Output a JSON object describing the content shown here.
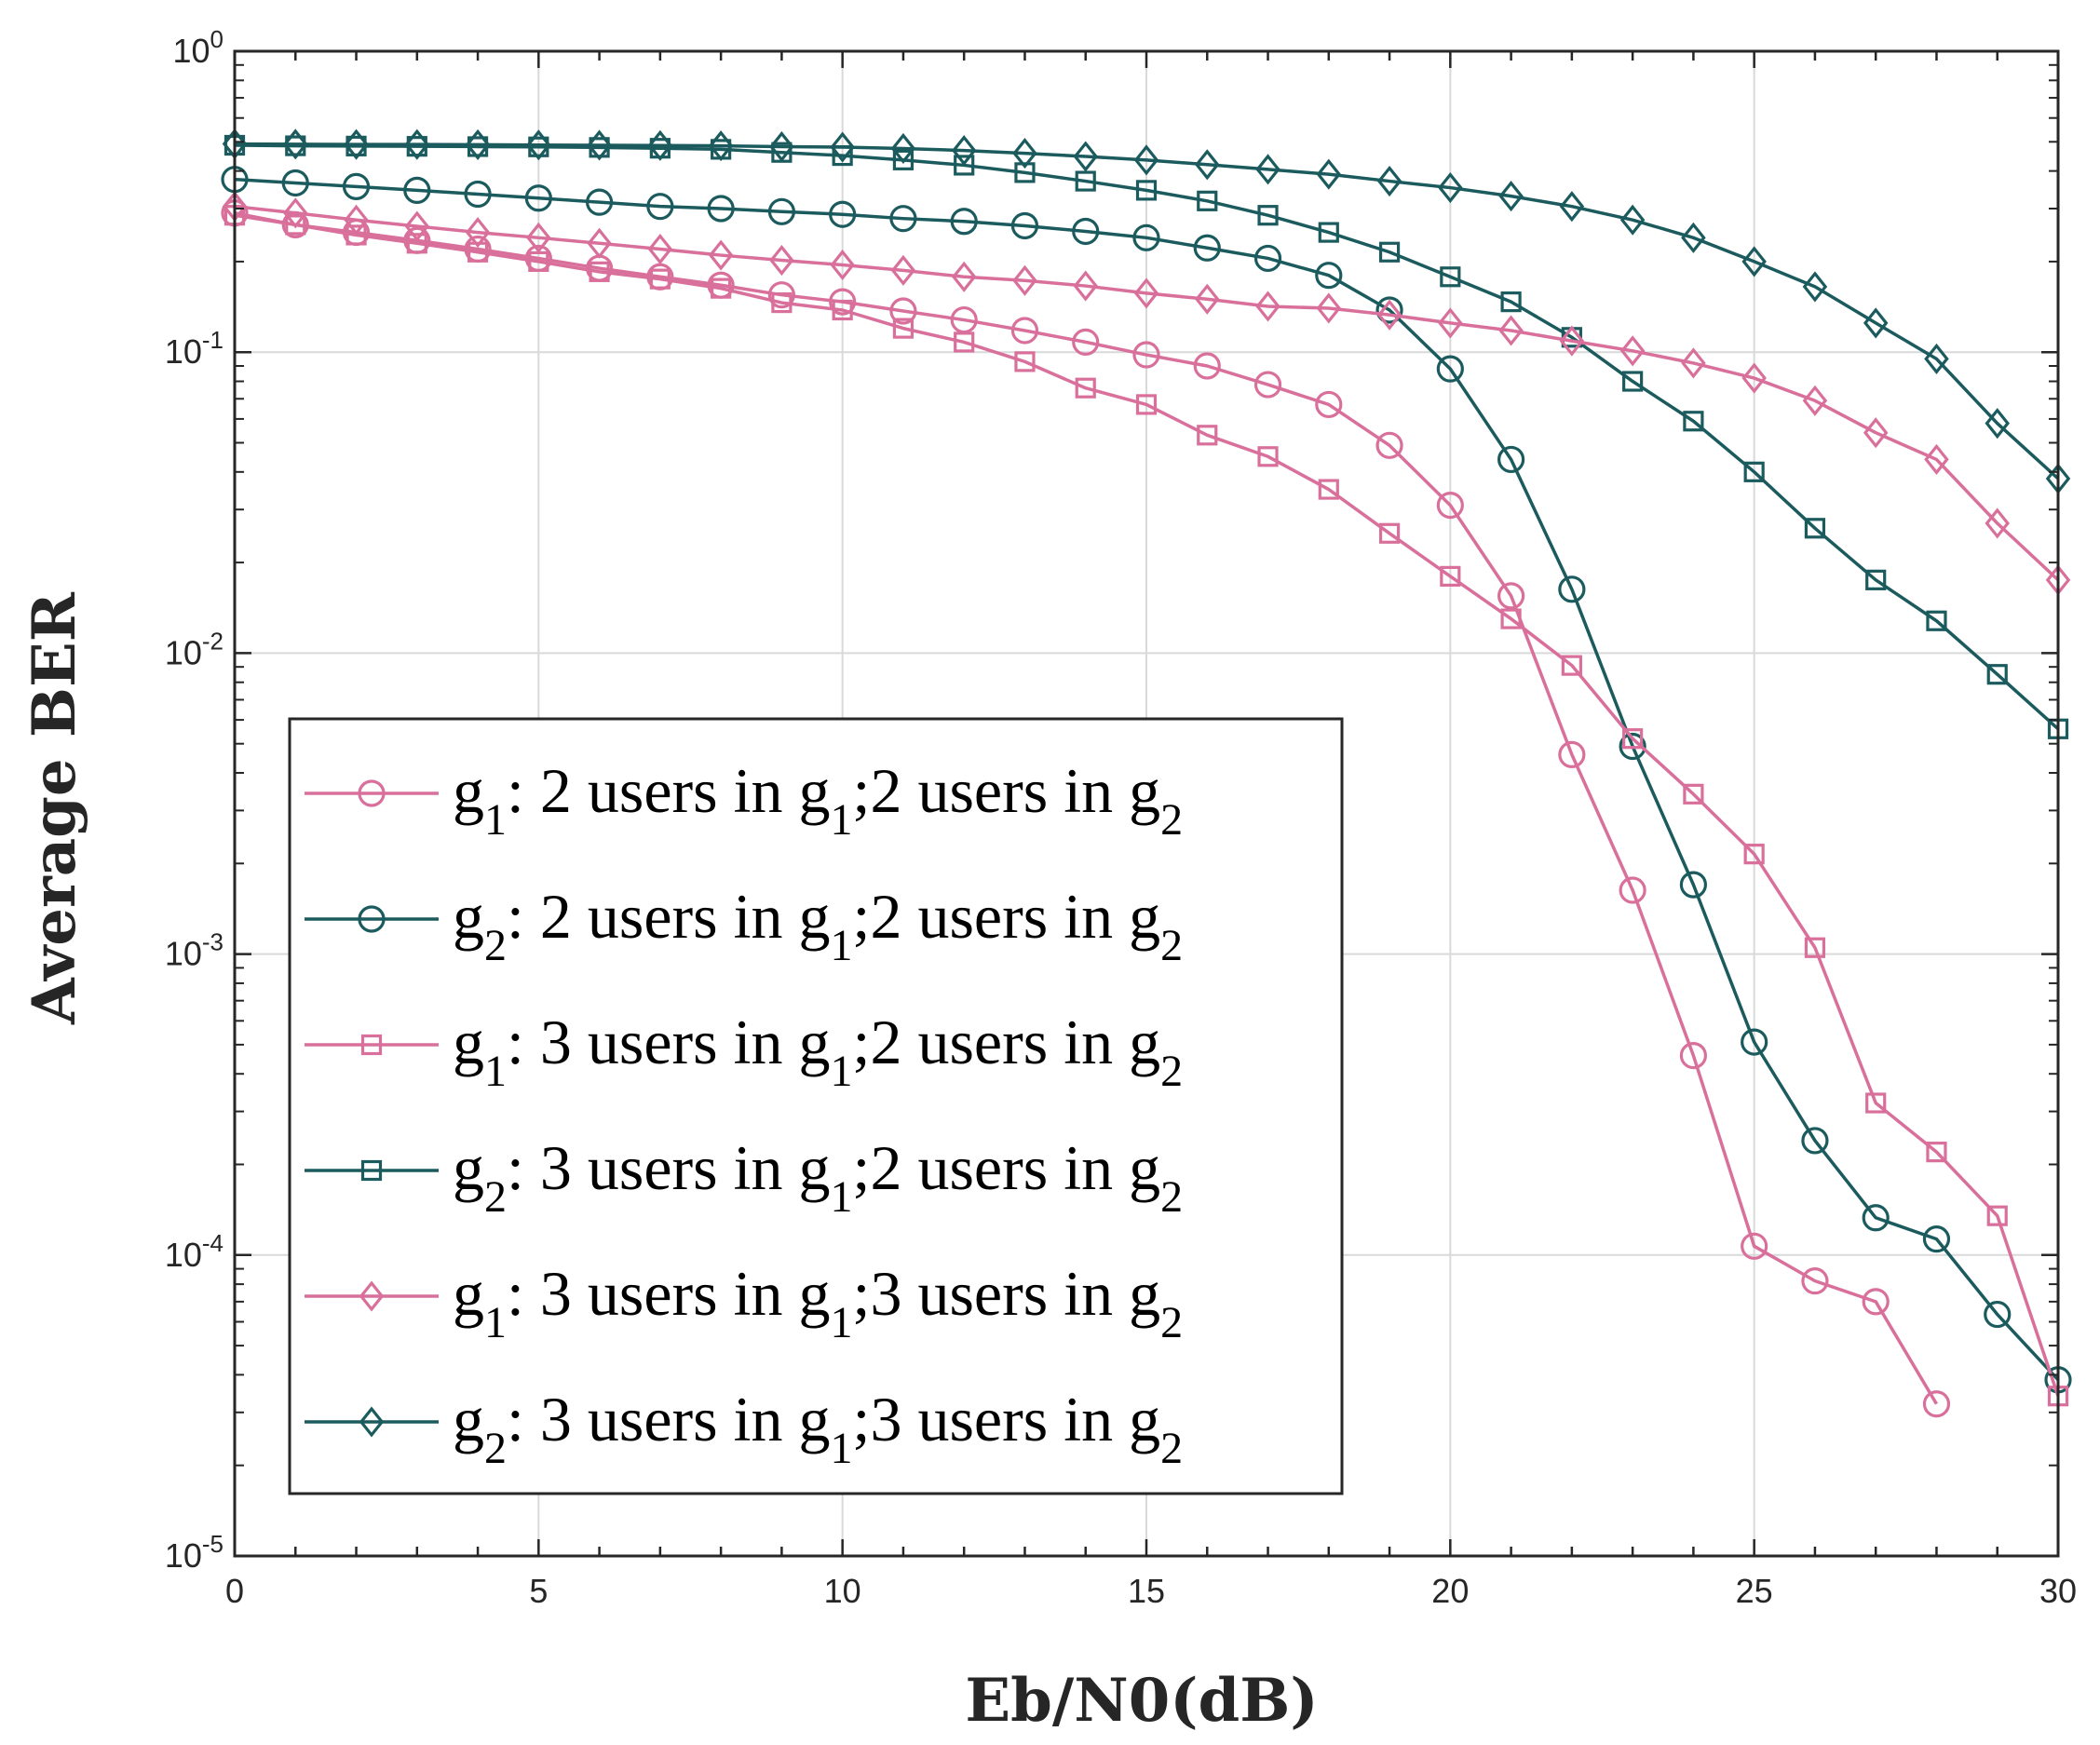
{
  "chart_data": {
    "type": "line",
    "xlabel": "Eb/N0(dB)",
    "ylabel": "Average BER",
    "xlim": [
      0,
      30
    ],
    "ylim": [
      1e-05,
      1
    ],
    "yscale": "log",
    "grid": true,
    "legend_position": "lower-left",
    "x_ticks": [
      "0",
      "5",
      "10",
      "15",
      "20",
      "25",
      "30"
    ],
    "y_ticks": [
      {
        "base": "10",
        "exp": "0"
      },
      {
        "base": "10",
        "exp": "-1"
      },
      {
        "base": "10",
        "exp": "-2"
      },
      {
        "base": "10",
        "exp": "-3"
      },
      {
        "base": "10",
        "exp": "-4"
      },
      {
        "base": "10",
        "exp": "-5"
      }
    ],
    "colors": {
      "pink": "#d9709b",
      "teal": "#1b5b5e"
    },
    "series": [
      {
        "name": "g1: 2 users in g1;2 users in g2",
        "legend_parts": [
          [
            "g",
            false
          ],
          [
            "1",
            true
          ],
          [
            ": 2 users in g",
            false
          ],
          [
            "1",
            true
          ],
          [
            ";2 users in g",
            false
          ],
          [
            "2",
            true
          ]
        ],
        "color": "#d9709b",
        "marker": "circle",
        "x": [
          0,
          1,
          2,
          3,
          4,
          5,
          6,
          7,
          8,
          9,
          10,
          11,
          12,
          13,
          14,
          15,
          16,
          17,
          18,
          19,
          20,
          21,
          22,
          23,
          24,
          25,
          26,
          27,
          28
        ],
        "y": [
          0.29,
          0.265,
          0.25,
          0.235,
          0.22,
          0.205,
          0.19,
          0.178,
          0.167,
          0.155,
          0.147,
          0.137,
          0.128,
          0.118,
          0.108,
          0.098,
          0.09,
          0.078,
          0.067,
          0.049,
          0.031,
          0.0155,
          0.0046,
          0.00163,
          0.00046,
          0.000107,
          8.2e-05,
          7e-05,
          3.2e-05
        ]
      },
      {
        "name": "g2: 2 users in g1;2 users in g2",
        "legend_parts": [
          [
            "g",
            false
          ],
          [
            "2",
            true
          ],
          [
            ": 2 users in g",
            false
          ],
          [
            "1",
            true
          ],
          [
            ";2 users in g",
            false
          ],
          [
            "2",
            true
          ]
        ],
        "color": "#1b5b5e",
        "marker": "circle",
        "x": [
          0,
          1,
          2,
          3,
          4,
          5,
          6,
          7,
          8,
          9,
          10,
          11,
          12,
          13,
          14,
          15,
          16,
          17,
          18,
          19,
          20,
          21,
          22,
          23,
          24,
          25,
          26,
          27,
          28,
          29,
          30
        ],
        "y": [
          0.375,
          0.365,
          0.355,
          0.345,
          0.335,
          0.325,
          0.315,
          0.305,
          0.3,
          0.293,
          0.287,
          0.278,
          0.272,
          0.263,
          0.252,
          0.24,
          0.222,
          0.205,
          0.18,
          0.138,
          0.088,
          0.044,
          0.0163,
          0.0049,
          0.0017,
          0.00051,
          0.00024,
          0.000133,
          0.000113,
          6.35e-05,
          3.85e-05
        ]
      },
      {
        "name": "g1: 3 users in g1;2 users in g2",
        "legend_parts": [
          [
            "g",
            false
          ],
          [
            "1",
            true
          ],
          [
            ": 3 users in g",
            false
          ],
          [
            "1",
            true
          ],
          [
            ";2 users in g",
            false
          ],
          [
            "2",
            true
          ]
        ],
        "color": "#d9709b",
        "marker": "square",
        "x": [
          0,
          1,
          2,
          3,
          4,
          5,
          6,
          7,
          8,
          9,
          10,
          11,
          12,
          13,
          14,
          15,
          16,
          17,
          18,
          19,
          20,
          21,
          22,
          23,
          24,
          25,
          26,
          27,
          28,
          29,
          30
        ],
        "y": [
          0.285,
          0.265,
          0.245,
          0.23,
          0.215,
          0.2,
          0.185,
          0.175,
          0.163,
          0.146,
          0.138,
          0.12,
          0.108,
          0.093,
          0.076,
          0.067,
          0.053,
          0.045,
          0.035,
          0.025,
          0.018,
          0.013,
          0.0091,
          0.0052,
          0.0034,
          0.00215,
          0.00105,
          0.00032,
          0.00022,
          0.000135,
          3.4e-05
        ]
      },
      {
        "name": "g2: 3 users in g1;2 users in g2",
        "legend_parts": [
          [
            "g",
            false
          ],
          [
            "2",
            true
          ],
          [
            ": 3 users in g",
            false
          ],
          [
            "1",
            true
          ],
          [
            ";2 users in g",
            false
          ],
          [
            "2",
            true
          ]
        ],
        "color": "#1b5b5e",
        "marker": "square",
        "x": [
          0,
          1,
          2,
          3,
          4,
          5,
          6,
          7,
          8,
          9,
          10,
          11,
          12,
          13,
          14,
          15,
          16,
          17,
          18,
          19,
          20,
          21,
          22,
          23,
          24,
          25,
          26,
          27,
          28,
          29,
          30
        ],
        "y": [
          0.487,
          0.485,
          0.484,
          0.483,
          0.482,
          0.481,
          0.479,
          0.476,
          0.472,
          0.461,
          0.45,
          0.435,
          0.418,
          0.395,
          0.37,
          0.345,
          0.318,
          0.285,
          0.25,
          0.215,
          0.178,
          0.147,
          0.112,
          0.08,
          0.059,
          0.04,
          0.026,
          0.0175,
          0.0128,
          0.0085,
          0.0056
        ]
      },
      {
        "name": "g1: 3 users in g1;3 users in g2",
        "legend_parts": [
          [
            "g",
            false
          ],
          [
            "1",
            true
          ],
          [
            ": 3 users in g",
            false
          ],
          [
            "1",
            true
          ],
          [
            ";3 users in g",
            false
          ],
          [
            "2",
            true
          ]
        ],
        "color": "#d9709b",
        "marker": "diamond",
        "x": [
          0,
          1,
          2,
          3,
          4,
          5,
          6,
          7,
          8,
          9,
          10,
          11,
          12,
          13,
          14,
          15,
          16,
          17,
          18,
          19,
          20,
          21,
          22,
          23,
          24,
          25,
          26,
          27,
          28,
          29,
          30
        ],
        "y": [
          0.305,
          0.29,
          0.275,
          0.262,
          0.25,
          0.24,
          0.23,
          0.22,
          0.21,
          0.202,
          0.195,
          0.187,
          0.178,
          0.173,
          0.166,
          0.157,
          0.15,
          0.142,
          0.14,
          0.133,
          0.125,
          0.118,
          0.109,
          0.101,
          0.092,
          0.082,
          0.069,
          0.054,
          0.044,
          0.027,
          0.0175
        ]
      },
      {
        "name": "g2: 3 users in g1;3 users in g2",
        "legend_parts": [
          [
            "g",
            false
          ],
          [
            "2",
            true
          ],
          [
            ": 3 users in g",
            false
          ],
          [
            "1",
            true
          ],
          [
            ";3 users in g",
            false
          ],
          [
            "2",
            true
          ]
        ],
        "color": "#1b5b5e",
        "marker": "diamond",
        "x": [
          0,
          1,
          2,
          3,
          4,
          5,
          6,
          7,
          8,
          9,
          10,
          11,
          12,
          13,
          14,
          15,
          16,
          17,
          18,
          19,
          20,
          21,
          22,
          23,
          24,
          25,
          26,
          27,
          28,
          29,
          30
        ],
        "y": [
          0.492,
          0.491,
          0.49,
          0.49,
          0.489,
          0.488,
          0.487,
          0.486,
          0.485,
          0.482,
          0.48,
          0.475,
          0.468,
          0.458,
          0.447,
          0.435,
          0.42,
          0.405,
          0.39,
          0.37,
          0.352,
          0.33,
          0.305,
          0.275,
          0.24,
          0.2,
          0.165,
          0.125,
          0.095,
          0.058,
          0.038
        ]
      }
    ]
  }
}
